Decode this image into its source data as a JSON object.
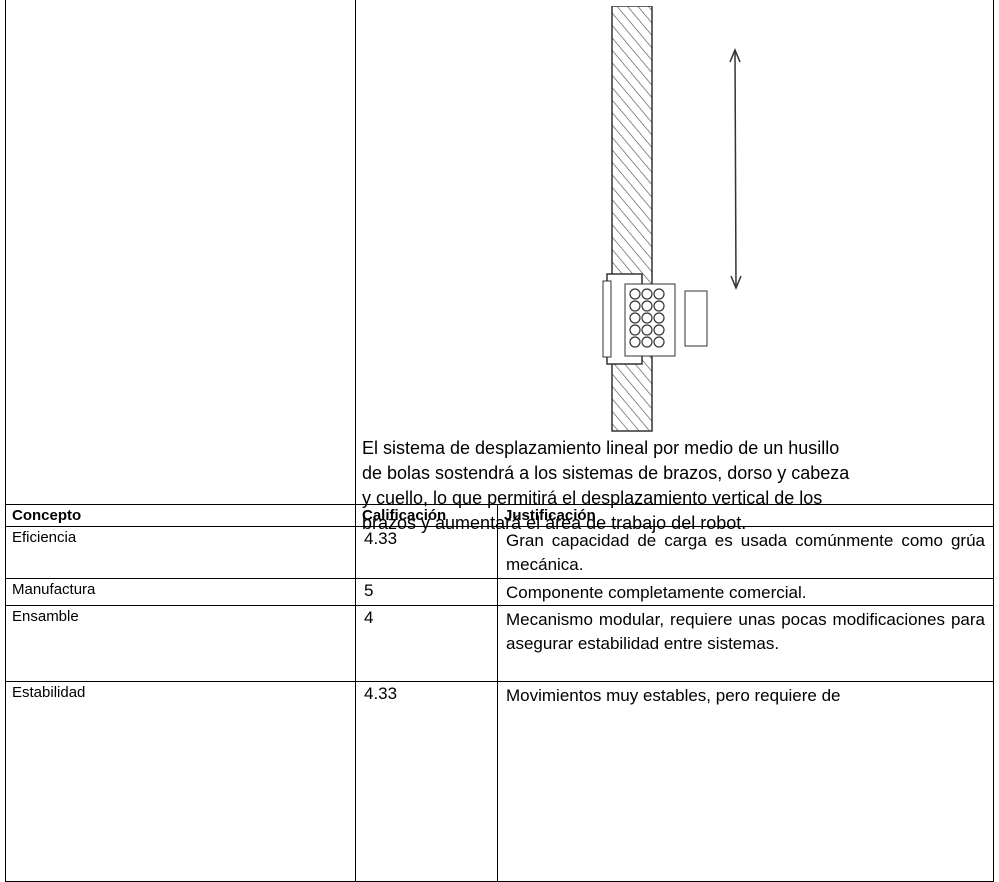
{
  "top": {
    "description": "El sistema de desplazamiento lineal por medio de un husillo de bolas sostendrá a los sistemas de brazos, dorso y cabeza y cuello, lo que permitirá el desplazamiento vertical de los brazos y aumentará el área de trabajo del robot."
  },
  "table": {
    "headers": [
      "Concepto",
      "Calificación",
      "Justificación"
    ],
    "rows": [
      [
        "Eficiencia",
        4.33,
        "Gran capacidad de carga es usada comúnmente como grúa mecánica."
      ],
      [
        "Manufactura",
        5,
        "Componente completamente comercial."
      ],
      [
        "Ensamble",
        4,
        "Mecanismo modular, requiere unas pocas modificaciones para asegurar estabilidad entre sistemas."
      ],
      [
        "Estabilidad",
        4.33,
        "Movimientos muy estables, pero requiere de"
      ]
    ]
  }
}
